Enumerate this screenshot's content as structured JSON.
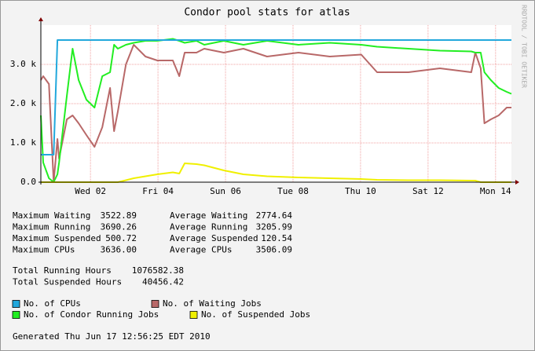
{
  "chart_data": {
    "type": "line",
    "title": "Condor pool stats for atlas",
    "x": [
      0.53,
      0.6,
      0.77,
      0.91,
      1.02,
      1.07,
      1.3,
      1.47,
      1.65,
      1.88,
      2.12,
      2.35,
      2.58,
      2.7,
      2.81,
      3.05,
      3.28,
      3.63,
      3.98,
      4.44,
      4.63,
      4.79,
      5.14,
      5.37,
      5.95,
      6.53,
      7.23,
      8.16,
      9.09,
      10.02,
      10.49,
      11.42,
      12.35,
      13.28,
      13.4,
      13.56,
      13.67,
      13.86,
      14.09,
      14.33,
      14.47
    ],
    "xlim": [
      0.53,
      14.47
    ],
    "xticks": [
      {
        "value": 2,
        "label": "Wed 02"
      },
      {
        "value": 4,
        "label": "Fri 04"
      },
      {
        "value": 6,
        "label": "Sun 06"
      },
      {
        "value": 8,
        "label": "Tue 08"
      },
      {
        "value": 10,
        "label": "Thu 10"
      },
      {
        "value": 12,
        "label": "Sat 12"
      },
      {
        "value": 14,
        "label": "Mon 14"
      }
    ],
    "ylim": [
      0,
      4000
    ],
    "yticks": [
      {
        "value": 0,
        "label": "0.0"
      },
      {
        "value": 1000,
        "label": "1.0 k"
      },
      {
        "value": 2000,
        "label": "2.0 k"
      },
      {
        "value": 3000,
        "label": "3.0 k"
      }
    ],
    "grid": true,
    "series": [
      {
        "name": "No. of CPUs",
        "color": "#22a8dc",
        "values": [
          700,
          700,
          700,
          700,
          3620,
          3620,
          3620,
          3620,
          3620,
          3620,
          3620,
          3620,
          3620,
          3620,
          3620,
          3620,
          3620,
          3620,
          3620,
          3620,
          3620,
          3620,
          3620,
          3620,
          3620,
          3620,
          3620,
          3620,
          3620,
          3620,
          3620,
          3620,
          3620,
          3620,
          3620,
          3620,
          3620,
          3620,
          3620,
          3620,
          3620
        ]
      },
      {
        "name": "No. of Waiting Jobs",
        "color": "#b86868",
        "values": [
          2600,
          2700,
          2500,
          0,
          1100,
          600,
          1600,
          1700,
          1500,
          1200,
          900,
          1400,
          2400,
          1300,
          1800,
          3000,
          3500,
          3200,
          3100,
          3100,
          2700,
          3300,
          3300,
          3400,
          3300,
          3400,
          3200,
          3300,
          3200,
          3250,
          2800,
          2800,
          2900,
          2800,
          3300,
          2900,
          1500,
          1600,
          1700,
          1900,
          1900
        ]
      },
      {
        "name": "No. of Condor Running Jobs",
        "color": "#22ee22",
        "values": [
          1700,
          500,
          100,
          0,
          200,
          500,
          2200,
          3400,
          2600,
          2100,
          1900,
          2700,
          2800,
          3500,
          3400,
          3500,
          3550,
          3600,
          3600,
          3650,
          3600,
          3550,
          3600,
          3500,
          3600,
          3500,
          3600,
          3500,
          3550,
          3500,
          3450,
          3400,
          3350,
          3330,
          3300,
          3300,
          2800,
          2600,
          2400,
          2300,
          2250
        ]
      },
      {
        "name": "No. of Suspended Jobs",
        "color": "#f0f000",
        "values": [
          0,
          0,
          0,
          0,
          0,
          0,
          0,
          0,
          0,
          0,
          0,
          0,
          0,
          0,
          0,
          50,
          100,
          150,
          200,
          250,
          220,
          480,
          460,
          430,
          300,
          200,
          150,
          120,
          100,
          80,
          60,
          50,
          50,
          40,
          40,
          0,
          0,
          0,
          0,
          0,
          0
        ]
      }
    ],
    "side_note": "RRDTOOL / TOBI OETIKER"
  },
  "stats": {
    "rows": [
      [
        "Maximum Waiting",
        "3522.89",
        "Average Waiting",
        "2774.64"
      ],
      [
        "Maximum Running",
        "3690.26",
        "Average Running",
        "3205.99"
      ],
      [
        "Maximum Suspended",
        "500.72",
        "Average Suspended",
        "120.54"
      ],
      [
        "Maximum CPUs",
        "3636.00",
        "Average CPUs",
        "3506.09"
      ]
    ],
    "totals": [
      [
        "Total Running Hours",
        "1076582.38"
      ],
      [
        "Total Suspended Hours",
        "40456.42"
      ]
    ]
  },
  "footer": "Generated Thu Jun 17 12:56:25 EDT 2010"
}
